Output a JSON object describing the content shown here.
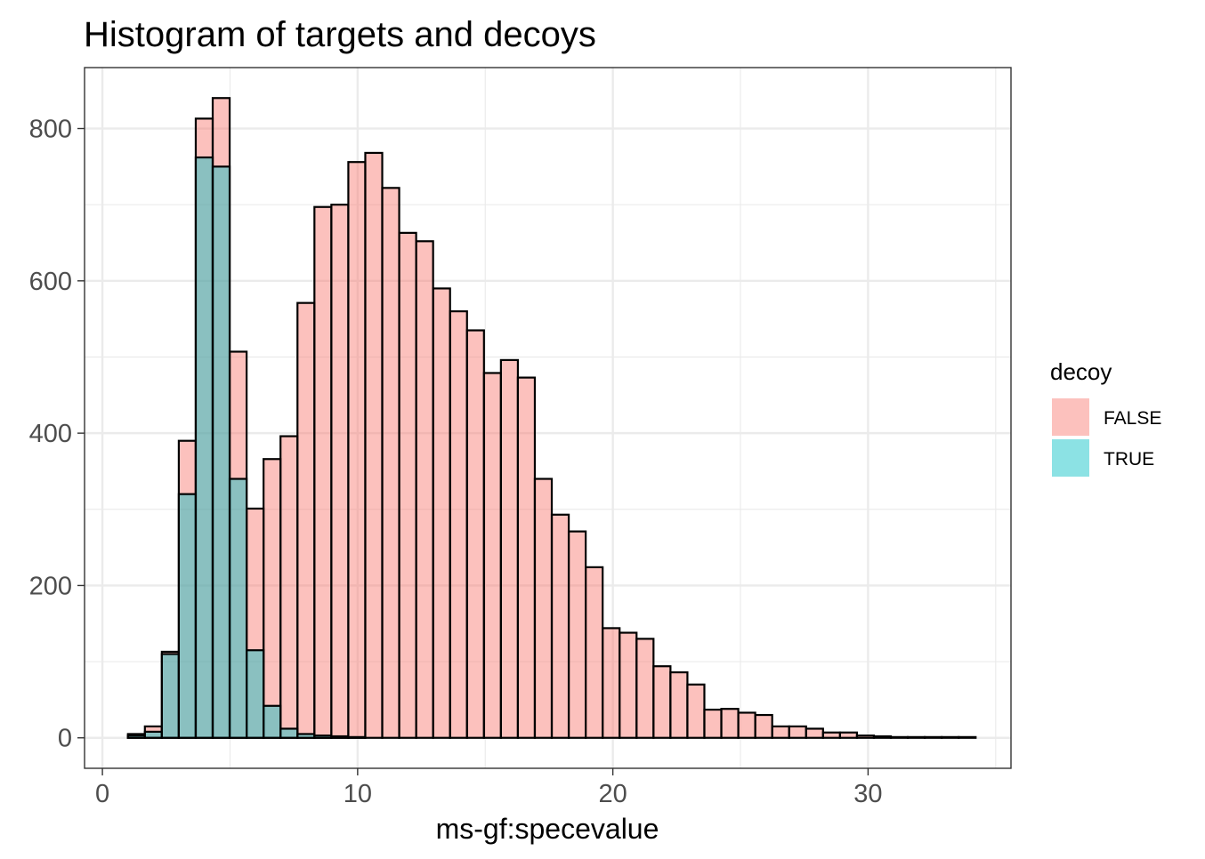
{
  "chart_data": {
    "type": "bar",
    "title": "Histogram of targets and decoys",
    "xlabel": "ms-gf:specevalue",
    "ylabel": "",
    "xlim": [
      -0.7,
      35.6
    ],
    "ylim": [
      -40,
      880
    ],
    "x_ticks": [
      0,
      10,
      20,
      30
    ],
    "y_ticks": [
      0,
      200,
      400,
      600,
      800
    ],
    "grid": true,
    "legend": {
      "title": "decoy",
      "position": "right",
      "entries": [
        "FALSE",
        "TRUE"
      ]
    },
    "bins": {
      "start": 1.0,
      "width": 0.6643
    },
    "series": [
      {
        "name": "FALSE",
        "color": "#F8766D",
        "values": [
          5,
          15,
          113,
          390,
          813,
          840,
          507,
          301,
          366,
          396,
          571,
          697,
          700,
          756,
          768,
          722,
          663,
          652,
          590,
          560,
          535,
          479,
          496,
          473,
          340,
          293,
          271,
          224,
          144,
          138,
          130,
          94,
          86,
          70,
          37,
          38,
          33,
          30,
          15,
          15,
          12,
          7,
          7,
          3,
          2,
          1,
          1,
          1,
          1,
          1
        ]
      },
      {
        "name": "TRUE",
        "color": "#00BFC4",
        "values": [
          3,
          8,
          110,
          320,
          762,
          750,
          340,
          115,
          42,
          12,
          5,
          3,
          2,
          1,
          0,
          0,
          0,
          0,
          0,
          0,
          0,
          0,
          0,
          0,
          0,
          0,
          0,
          0,
          0,
          0,
          0,
          0,
          0,
          0,
          0,
          0,
          0,
          0,
          0,
          0,
          0,
          0,
          0,
          0,
          0,
          0,
          0,
          0,
          0,
          0
        ]
      }
    ]
  }
}
